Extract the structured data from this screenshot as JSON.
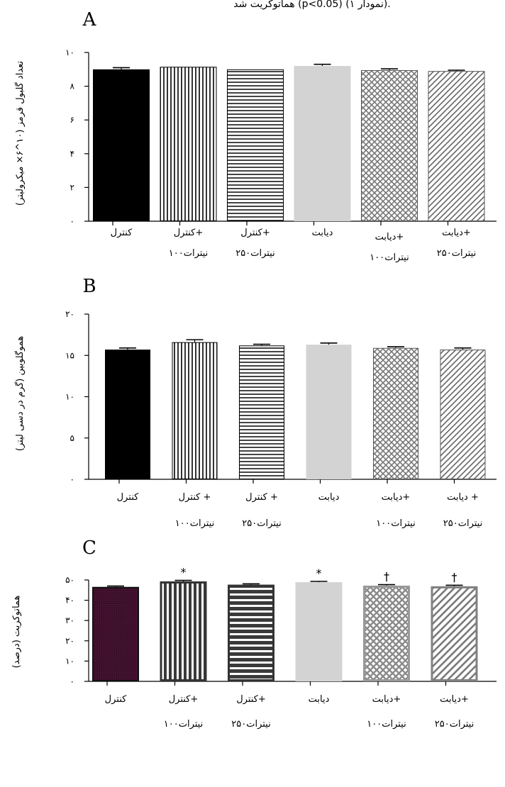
{
  "header_text": "هماتوکریت شد (p<0.05) (نمودار ۱).",
  "chart_data": [
    {
      "type": "bar",
      "panel_label": "A",
      "ylabel": "تعداد گلبول قرمز (۱۰^۶× میکرولیتر)",
      "ylim": [
        0,
        10
      ],
      "yticks": [
        "۰",
        "۲",
        "۴",
        "۶",
        "۸",
        "۱۰"
      ],
      "categories": [
        [
          "کنترل",
          ""
        ],
        [
          "کنترل+",
          "نیترات۱۰۰"
        ],
        [
          "کنترل+",
          "نیترات۲۵۰"
        ],
        [
          "دیابت",
          ""
        ],
        [
          "دیابت+",
          "نیترات۱۰۰"
        ],
        [
          "دیابت+",
          "نیترات۲۵۰"
        ]
      ],
      "values": [
        9.0,
        9.15,
        9.0,
        9.2,
        8.95,
        8.9
      ],
      "errors": [
        0.1,
        0.0,
        0.0,
        0.1,
        0.08,
        0.05
      ],
      "annotations": [
        "",
        "",
        "",
        "",
        "",
        ""
      ],
      "fills": [
        "solid-black",
        "vertical-lines",
        "horizontal-lines",
        "solid-lightgray",
        "crosshatch",
        "diagonal-lines"
      ]
    },
    {
      "type": "bar",
      "panel_label": "B",
      "ylabel": "هموگلوبین (گرم در دسی لیتر)",
      "ylim": [
        0,
        20
      ],
      "yticks": [
        "۰",
        "۵",
        "۱۰",
        "۱۵",
        "۲۰"
      ],
      "categories": [
        [
          "کنترل",
          ""
        ],
        [
          "کنترل +",
          "نیترات۱۰۰"
        ],
        [
          "کنترل +",
          "نیترات۲۵۰"
        ],
        [
          "دیابت",
          ""
        ],
        [
          "دیابت+",
          "نیترات۱۰۰"
        ],
        [
          "دیابت +",
          "نیترات۲۵۰"
        ]
      ],
      "values": [
        15.7,
        16.6,
        16.2,
        16.3,
        15.9,
        15.7
      ],
      "errors": [
        0.2,
        0.3,
        0.15,
        0.2,
        0.15,
        0.2
      ],
      "annotations": [
        "",
        "",
        "",
        "",
        "",
        ""
      ],
      "fills": [
        "solid-black",
        "vertical-lines",
        "horizontal-lines",
        "solid-lightgray",
        "crosshatch",
        "diagonal-lines"
      ]
    },
    {
      "type": "bar",
      "panel_label": "C",
      "ylabel": "هماتوکریت (درصد)",
      "ylim": [
        0,
        50
      ],
      "yticks": [
        "۰",
        "۱۰",
        "۲۰",
        "۳۰",
        "۴۰",
        "۵۰"
      ],
      "categories": [
        [
          "کنترل",
          ""
        ],
        [
          "کنترل+",
          "نیترات۱۰۰"
        ],
        [
          "کنترل+",
          "نیترات۲۵۰"
        ],
        [
          "دیابت",
          ""
        ],
        [
          "دیابت+",
          "نیترات۱۰۰"
        ],
        [
          "دیابت+",
          "نیترات۲۵۰"
        ]
      ],
      "values": [
        46.6,
        49.3,
        47.7,
        48.9,
        47.2,
        46.9
      ],
      "errors": [
        0.4,
        0.5,
        0.4,
        0.4,
        0.5,
        0.5
      ],
      "annotations": [
        "",
        "*",
        "",
        "*",
        "†",
        "†"
      ],
      "fills": [
        "dark-maroon-dots",
        "vertical-lines-dark",
        "horizontal-lines-dark",
        "solid-lightgray",
        "crosshatch-gray",
        "diagonal-lines-gray"
      ]
    }
  ]
}
